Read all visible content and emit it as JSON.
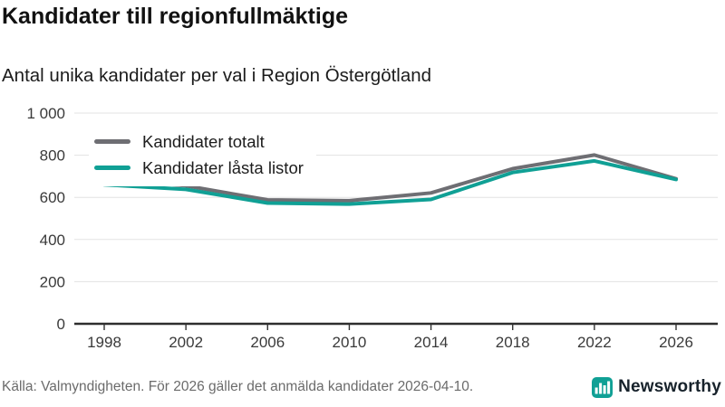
{
  "header": {
    "title": "Kandidater till regionfullmäktige",
    "subtitle": "Antal unika kandidater per val i Region Östergötland"
  },
  "chart_data": {
    "type": "line",
    "x": [
      1998,
      2002,
      2006,
      2010,
      2014,
      2018,
      2022,
      2026
    ],
    "xtick_labels": [
      "1998",
      "2002",
      "2006",
      "2010",
      "2014",
      "2018",
      "2022",
      "2026"
    ],
    "series": [
      {
        "name": "Kandidater totalt",
        "color": "#6e6e73",
        "values": [
          690,
          655,
          588,
          584,
          621,
          736,
          801,
          688
        ]
      },
      {
        "name": "Kandidater låsta listor",
        "color": "#10a095",
        "values": [
          660,
          638,
          573,
          568,
          590,
          718,
          773,
          685
        ]
      }
    ],
    "ylim": [
      0,
      1000
    ],
    "yticks": [
      0,
      200,
      400,
      600,
      800,
      1000
    ],
    "ytick_labels": [
      "0",
      "200",
      "400",
      "600",
      "800",
      "1 000"
    ],
    "grid": "horizontal",
    "legend_position": "top-left",
    "gridline_color": "#e3e3e3",
    "axis_color": "#2e2e2e"
  },
  "footer": {
    "source": "Källa: Valmyndigheten. För 2026 gäller det anmälda kandidater 2026-04-10.",
    "brand": "Newsworthy",
    "brand_icon": "bar-chart-icon",
    "brand_color": "#10a095"
  }
}
